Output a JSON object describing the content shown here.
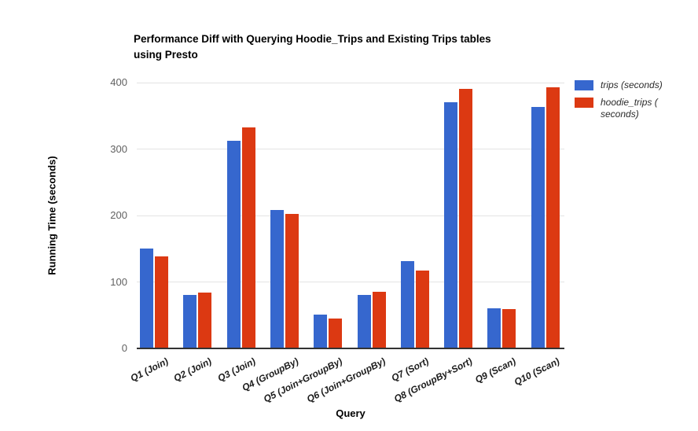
{
  "chart_data": {
    "type": "bar",
    "title": "Performance Diff with Querying Hoodie_Trips and Existing Trips tables using Presto",
    "title_lines": [
      "Performance Diff with Querying Hoodie_Trips and Existing Trips tables",
      "using Presto"
    ],
    "xlabel": "Query",
    "ylabel": "Running Time (seconds)",
    "ylim": [
      0,
      400
    ],
    "yticks": [
      0,
      100,
      200,
      300,
      400
    ],
    "grid": true,
    "legend_position": "right",
    "categories": [
      "Q1 (Join)",
      "Q2 (Join)",
      "Q3 (Join)",
      "Q4 (GroupBy)",
      "Q5 (Join+GroupBy)",
      "Q6 (Join+GroupBy)",
      "Q7 (Sort)",
      "Q8 (GroupBy+Sort)",
      "Q9 (Scan)",
      "Q10 (Scan)"
    ],
    "series": [
      {
        "name": "trips (seconds)",
        "color": "#3667ce",
        "values": [
          150,
          80,
          313,
          208,
          51,
          81,
          131,
          371,
          60,
          363
        ]
      },
      {
        "name": "hoodie_trips ( seconds)",
        "color": "#dc3912",
        "values": [
          138,
          84,
          332,
          202,
          45,
          85,
          117,
          390,
          59,
          393
        ]
      }
    ]
  }
}
